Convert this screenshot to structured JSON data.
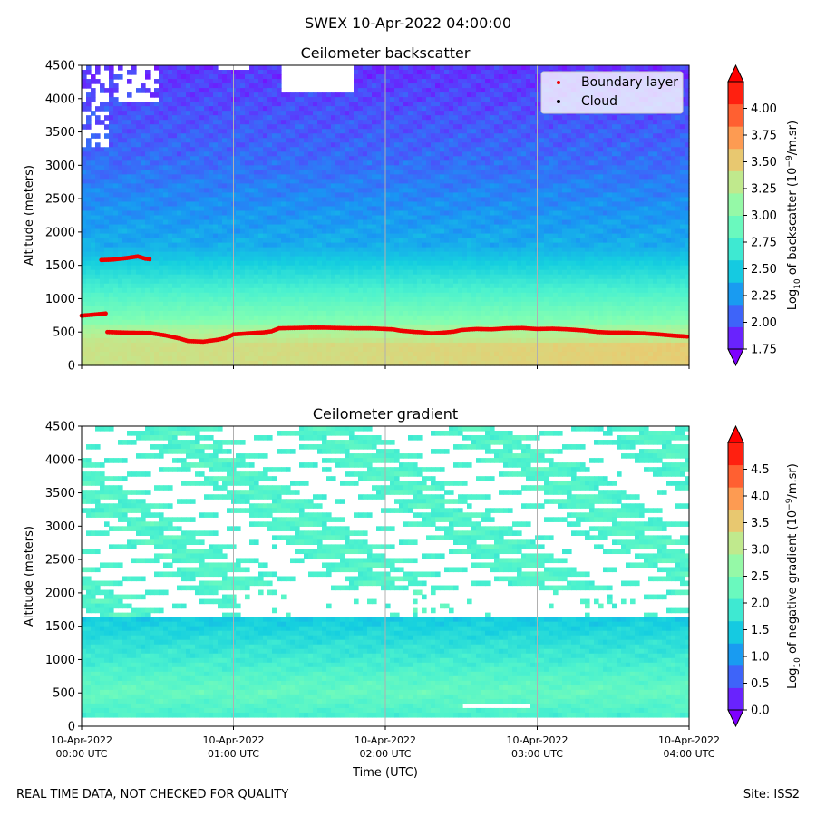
{
  "suptitle": "SWEX 10-Apr-2022 04:00:00",
  "footer": {
    "left": "REAL TIME DATA, NOT CHECKED FOR QUALITY",
    "right": "Site: ISS2"
  },
  "colors": {
    "boundary_layer": "#ee0000",
    "cloud": "#000000",
    "gridline": "#b0b0b0",
    "colormap": [
      "#7f00ff",
      "#4a53fb",
      "#1996f3",
      "#15cfdf",
      "#4cf2ce",
      "#80feb3",
      "#b3f296",
      "#e6cd73",
      "#ff964f",
      "#ff4e27",
      "#ff0000"
    ]
  },
  "chart_data": [
    {
      "type": "heatmap",
      "title": "Ceilometer backscatter",
      "ylabel": "Altitude (meters)",
      "xlabel": "",
      "xlim_hours_utc": [
        0,
        4
      ],
      "ylim": [
        0,
        4500
      ],
      "yticks": [
        0,
        500,
        1000,
        1500,
        2000,
        2500,
        3000,
        3500,
        4000,
        4500
      ],
      "xtick_labels": [
        "",
        "",
        "",
        "",
        ""
      ],
      "vertical_gridlines_hours": [
        1,
        2,
        3
      ],
      "colorbar": {
        "label_parts": [
          "Log",
          "10",
          " of backscatter (10",
          "−9",
          "/m.sr)"
        ],
        "range": [
          1.75,
          4.25
        ],
        "ticks": [
          "1.75",
          "2.00",
          "2.25",
          "2.50",
          "2.75",
          "3.00",
          "3.25",
          "3.50",
          "3.75",
          "4.00"
        ],
        "extend": "both"
      },
      "legend": {
        "location": "upper-right",
        "entries": [
          "Boundary layer",
          "Cloud"
        ]
      },
      "series": [
        {
          "name": "Boundary layer",
          "kind": "scatter",
          "segments": [
            [
              [
                0.0,
                745
              ],
              [
                0.05,
                755
              ],
              [
                0.1,
                765
              ],
              [
                0.17,
                780
              ]
            ],
            [
              [
                0.13,
                1580
              ],
              [
                0.2,
                1585
              ],
              [
                0.3,
                1610
              ],
              [
                0.37,
                1635
              ],
              [
                0.42,
                1600
              ],
              [
                0.46,
                1590
              ]
            ],
            [
              [
                0.17,
                500
              ],
              [
                0.3,
                490
              ],
              [
                0.45,
                485
              ],
              [
                0.55,
                450
              ],
              [
                0.65,
                400
              ],
              [
                0.7,
                365
              ],
              [
                0.8,
                355
              ],
              [
                0.9,
                385
              ],
              [
                0.95,
                410
              ],
              [
                1.0,
                465
              ],
              [
                1.1,
                480
              ],
              [
                1.2,
                495
              ],
              [
                1.25,
                510
              ],
              [
                1.3,
                555
              ],
              [
                1.4,
                560
              ],
              [
                1.5,
                565
              ],
              [
                1.6,
                565
              ],
              [
                1.7,
                560
              ],
              [
                1.8,
                555
              ],
              [
                1.9,
                555
              ],
              [
                2.0,
                545
              ],
              [
                2.05,
                540
              ],
              [
                2.1,
                520
              ],
              [
                2.2,
                500
              ],
              [
                2.25,
                495
              ],
              [
                2.3,
                480
              ],
              [
                2.35,
                485
              ],
              [
                2.45,
                505
              ],
              [
                2.5,
                530
              ],
              [
                2.6,
                545
              ],
              [
                2.7,
                540
              ],
              [
                2.8,
                555
              ],
              [
                2.9,
                560
              ],
              [
                3.0,
                545
              ],
              [
                3.1,
                550
              ],
              [
                3.2,
                540
              ],
              [
                3.3,
                525
              ],
              [
                3.4,
                500
              ],
              [
                3.5,
                490
              ],
              [
                3.6,
                490
              ],
              [
                3.7,
                480
              ],
              [
                3.8,
                465
              ],
              [
                3.9,
                445
              ],
              [
                4.0,
                430
              ]
            ]
          ]
        },
        {
          "name": "Cloud",
          "kind": "scatter",
          "segments": []
        }
      ]
    },
    {
      "type": "heatmap",
      "title": "Ceilometer gradient",
      "ylabel": "Altitude (meters)",
      "xlabel": "Time (UTC)",
      "xlim_hours_utc": [
        0,
        4
      ],
      "ylim": [
        0,
        4500
      ],
      "yticks": [
        0,
        500,
        1000,
        1500,
        2000,
        2500,
        3000,
        3500,
        4000,
        4500
      ],
      "xtick_labels": [
        [
          "10-Apr-2022",
          "00:00 UTC"
        ],
        [
          "10-Apr-2022",
          "01:00 UTC"
        ],
        [
          "10-Apr-2022",
          "02:00 UTC"
        ],
        [
          "10-Apr-2022",
          "03:00 UTC"
        ],
        [
          "10-Apr-2022",
          "04:00 UTC"
        ]
      ],
      "vertical_gridlines_hours": [
        1,
        2,
        3
      ],
      "colorbar": {
        "label_parts": [
          "Log",
          "10",
          " of negative gradient (10",
          "−9",
          "/m.sr)"
        ],
        "range": [
          0.0,
          5.0
        ],
        "ticks": [
          "0.0",
          "0.5",
          "1.0",
          "1.5",
          "2.0",
          "2.5",
          "3.0",
          "3.5",
          "4.0",
          "4.5"
        ],
        "extend": "both"
      }
    }
  ]
}
